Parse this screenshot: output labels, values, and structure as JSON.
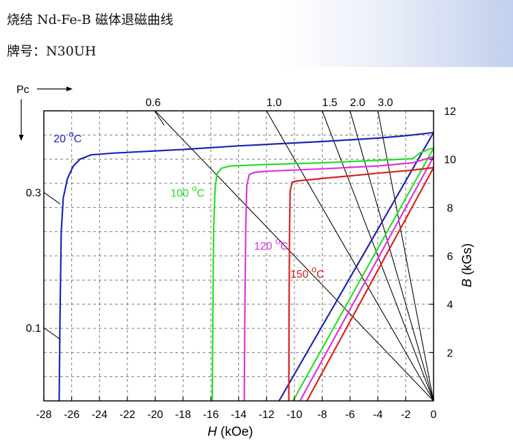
{
  "header": {
    "title": "烧结 Nd-Fe-B 磁体退磁曲线",
    "grade_label": "牌号：",
    "grade": "N30UH"
  },
  "chart_data": {
    "type": "line",
    "xlabel_italic": "H",
    "xlabel_unit": " (kOe)",
    "ylabel_italic": "B",
    "ylabel_unit": " (kGs)",
    "pc_label": "Pc",
    "xlim": [
      -28,
      0
    ],
    "ylim": [
      0,
      12
    ],
    "x_ticks": [
      -28,
      -26,
      -24,
      -22,
      -20,
      -18,
      -16,
      -14,
      -12,
      -10,
      -8,
      -6,
      -4,
      -2,
      0
    ],
    "y_ticks": [
      2,
      4,
      6,
      8,
      10,
      12
    ],
    "grid": true,
    "pc_lines": [
      {
        "label": "0.6",
        "value": 0.6
      },
      {
        "label": "1.0",
        "value": 1.0
      },
      {
        "label": "1.5",
        "value": 1.5
      },
      {
        "label": "2.0",
        "value": 2.0
      },
      {
        "label": "3.0",
        "value": 3.0
      }
    ],
    "pc_left_ticks": [
      {
        "label": "0.3",
        "value": 0.3
      },
      {
        "label": "0.1",
        "value": 0.1
      }
    ],
    "series": [
      {
        "name": "20",
        "name_sup": "o",
        "name_suffix": "C",
        "color": "#1a22b4",
        "label_pos": [
          -27.3,
          10.7
        ],
        "b_curve": [
          [
            -26.9,
            0
          ],
          [
            -26.85,
            3
          ],
          [
            -26.8,
            5
          ],
          [
            -26.75,
            7
          ],
          [
            -26.6,
            8.4
          ],
          [
            -26.3,
            9.2
          ],
          [
            -25.9,
            9.7
          ],
          [
            -25.4,
            10.0
          ],
          [
            -24.6,
            10.18
          ],
          [
            -23,
            10.25
          ],
          [
            -18,
            10.4
          ],
          [
            -14,
            10.55
          ],
          [
            -8,
            10.73
          ],
          [
            -4,
            10.87
          ],
          [
            -2,
            10.97
          ],
          [
            0,
            11.1
          ]
        ],
        "j_line": [
          [
            -11.1,
            0
          ],
          [
            0,
            11.1
          ]
        ]
      },
      {
        "name": "100",
        "name_sup": "o",
        "name_suffix": "C",
        "color": "#22e022",
        "label_pos": [
          -18.9,
          8.45
        ],
        "b_curve": [
          [
            -15.9,
            0
          ],
          [
            -15.85,
            4
          ],
          [
            -15.8,
            7
          ],
          [
            -15.7,
            8.8
          ],
          [
            -15.55,
            9.4
          ],
          [
            -15.25,
            9.62
          ],
          [
            -14.6,
            9.72
          ],
          [
            -12,
            9.78
          ],
          [
            -8,
            9.85
          ],
          [
            -4,
            9.95
          ],
          [
            -1.5,
            10.02
          ],
          [
            -1.0,
            10.25
          ],
          [
            -0.3,
            10.42
          ],
          [
            0,
            10.45
          ]
        ],
        "j_line": [
          [
            -10.1,
            0
          ],
          [
            0,
            10.45
          ]
        ]
      },
      {
        "name": "120",
        "name_sup": "o",
        "name_suffix": "C",
        "color": "#e030e0",
        "label_pos": [
          -12.9,
          6.25
        ],
        "b_curve": [
          [
            -13.6,
            0
          ],
          [
            -13.55,
            4
          ],
          [
            -13.5,
            7
          ],
          [
            -13.42,
            8.9
          ],
          [
            -13.25,
            9.35
          ],
          [
            -12.9,
            9.45
          ],
          [
            -12,
            9.5
          ],
          [
            -8,
            9.6
          ],
          [
            -4,
            9.72
          ],
          [
            -1.5,
            9.85
          ],
          [
            0,
            10.1
          ]
        ],
        "j_line": [
          [
            -9.6,
            0
          ],
          [
            0,
            10.1
          ]
        ]
      },
      {
        "name": "150",
        "name_sup": "o",
        "name_suffix": "C",
        "color": "#d82020",
        "label_pos": [
          -10.3,
          5.1
        ],
        "b_curve": [
          [
            -10.4,
            0
          ],
          [
            -10.38,
            4
          ],
          [
            -10.35,
            7
          ],
          [
            -10.3,
            8.7
          ],
          [
            -10.15,
            9.05
          ],
          [
            -9.8,
            9.1
          ],
          [
            -8,
            9.2
          ],
          [
            -4,
            9.42
          ],
          [
            -1.5,
            9.55
          ],
          [
            0,
            9.65
          ]
        ],
        "j_line": [
          [
            -9.1,
            0
          ],
          [
            0,
            9.65
          ]
        ]
      }
    ]
  }
}
